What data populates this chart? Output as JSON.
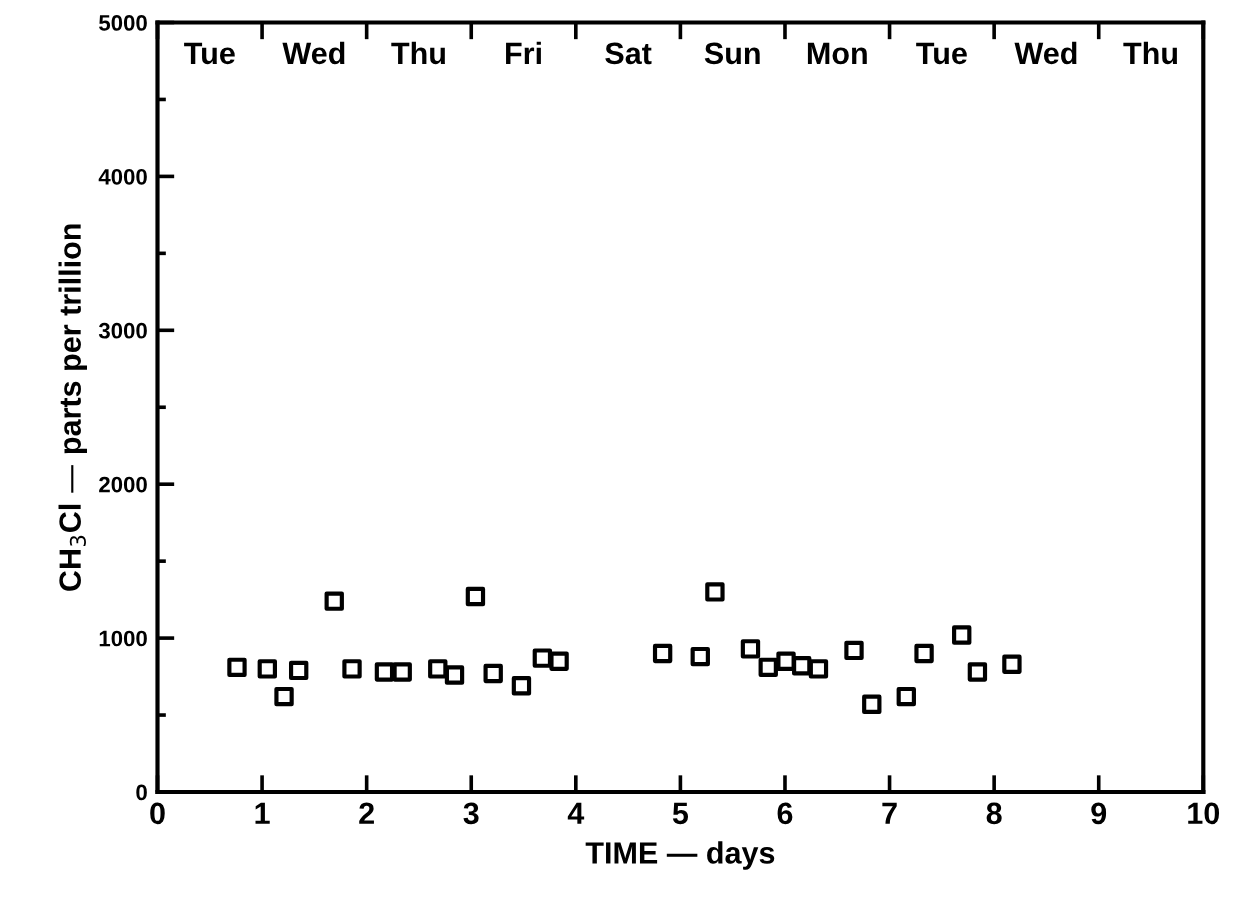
{
  "chart_data": {
    "type": "scatter",
    "xlabel": "TIME — days",
    "ylabel": "CH$_{3}$Cl — parts per trillion",
    "x": [
      0.76,
      1.05,
      1.21,
      1.35,
      1.69,
      1.86,
      2.17,
      2.34,
      2.68,
      2.84,
      3.04,
      3.21,
      3.48,
      3.68,
      3.84,
      4.83,
      5.19,
      5.33,
      5.67,
      5.84,
      6.01,
      6.16,
      6.32,
      6.66,
      6.83,
      7.16,
      7.33,
      7.69,
      7.84,
      8.17
    ],
    "values": [
      810,
      800,
      620,
      790,
      1240,
      800,
      780,
      780,
      800,
      760,
      1270,
      770,
      690,
      870,
      850,
      900,
      880,
      1300,
      930,
      810,
      850,
      820,
      800,
      920,
      570,
      620,
      900,
      1020,
      780,
      830
    ],
    "color": "#000000",
    "marker": "square",
    "xlim": [
      0,
      10
    ],
    "xticks": [
      0,
      1,
      2,
      3,
      4,
      5,
      6,
      7,
      8,
      9,
      10
    ],
    "ylim": [
      0,
      5000
    ],
    "yticks": [
      0,
      1000,
      2000,
      3000,
      4000,
      5000
    ],
    "annotations": [
      "Tue",
      "Wed",
      "Thu",
      "Fri",
      "Sat",
      "Sun",
      "Mon",
      "Tue",
      "Wed",
      "Thu"
    ],
    "grid": false
  }
}
